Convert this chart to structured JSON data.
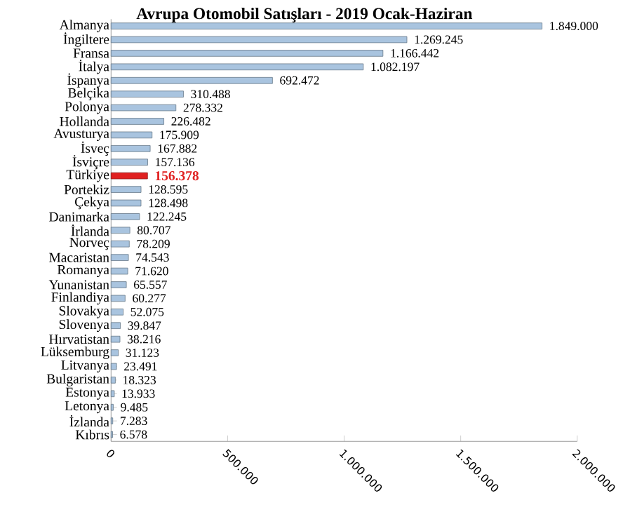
{
  "chart_data": {
    "type": "bar",
    "orientation": "horizontal",
    "title": "Avrupa  Otomobil  Satışları  - 2019  Ocak-Haziran",
    "categories": [
      "Almanya",
      "İngiltere",
      "Fransa",
      "İtalya",
      "İspanya",
      "Belçika",
      "Polonya",
      "Hollanda",
      "Avusturya",
      "İsveç",
      "İsviçre",
      "Türkiye",
      "Portekiz",
      "Çekya",
      "Danimarka",
      "İrlanda",
      "Norveç",
      "Macaristan",
      "Romanya",
      "Yunanistan",
      "Finlandiya",
      "Slovakya",
      "Slovenya",
      "Hırvatistan",
      "Lüksemburg",
      "Litvanya",
      "Bulgaristan",
      "Estonya",
      "Letonya",
      "İzlanda",
      "Kıbrıs"
    ],
    "values": [
      1849000,
      1269245,
      1166442,
      1082197,
      692472,
      310488,
      278332,
      226482,
      175909,
      167882,
      157136,
      156378,
      128595,
      128498,
      122245,
      80707,
      78209,
      74543,
      71620,
      65557,
      60277,
      52075,
      39847,
      38216,
      31123,
      23491,
      18323,
      13933,
      9485,
      7283,
      6578
    ],
    "value_labels": [
      "1.849.000",
      "1.269.245",
      "1.166.442",
      "1.082.197",
      "692.472",
      "310.488",
      "278.332",
      "226.482",
      "175.909",
      "167.882",
      "157.136",
      "156.378",
      "128.595",
      "128.498",
      "122.245",
      "80.707",
      "78.209",
      "74.543",
      "71.620",
      "65.557",
      "60.277",
      "52.075",
      "39.847",
      "38.216",
      "31.123",
      "23.491",
      "18.323",
      "13.933",
      "9.485",
      "7.283",
      "6.578"
    ],
    "colors": [
      "#a9c4df",
      "#a9c4df",
      "#a9c4df",
      "#a9c4df",
      "#a9c4df",
      "#a9c4df",
      "#a9c4df",
      "#a9c4df",
      "#a9c4df",
      "#a9c4df",
      "#a9c4df",
      "#e02020",
      "#a9c4df",
      "#a9c4df",
      "#a9c4df",
      "#a9c4df",
      "#a9c4df",
      "#a9c4df",
      "#a9c4df",
      "#a9c4df",
      "#a9c4df",
      "#a9c4df",
      "#a9c4df",
      "#a9c4df",
      "#a9c4df",
      "#a9c4df",
      "#a9c4df",
      "#a9c4df",
      "#a9c4df",
      "#a9c4df",
      "#a9c4df"
    ],
    "xlim": [
      0,
      2000000
    ],
    "xticks": [
      0,
      {
        "value": 500000,
        "label": "500.000"
      },
      {
        "value": 1000000,
        "label": "1.000.000"
      },
      {
        "value": 1500000,
        "label": "1.500.000"
      },
      {
        "value": 2000000,
        "label": "2.000.000"
      }
    ],
    "grid": false
  }
}
